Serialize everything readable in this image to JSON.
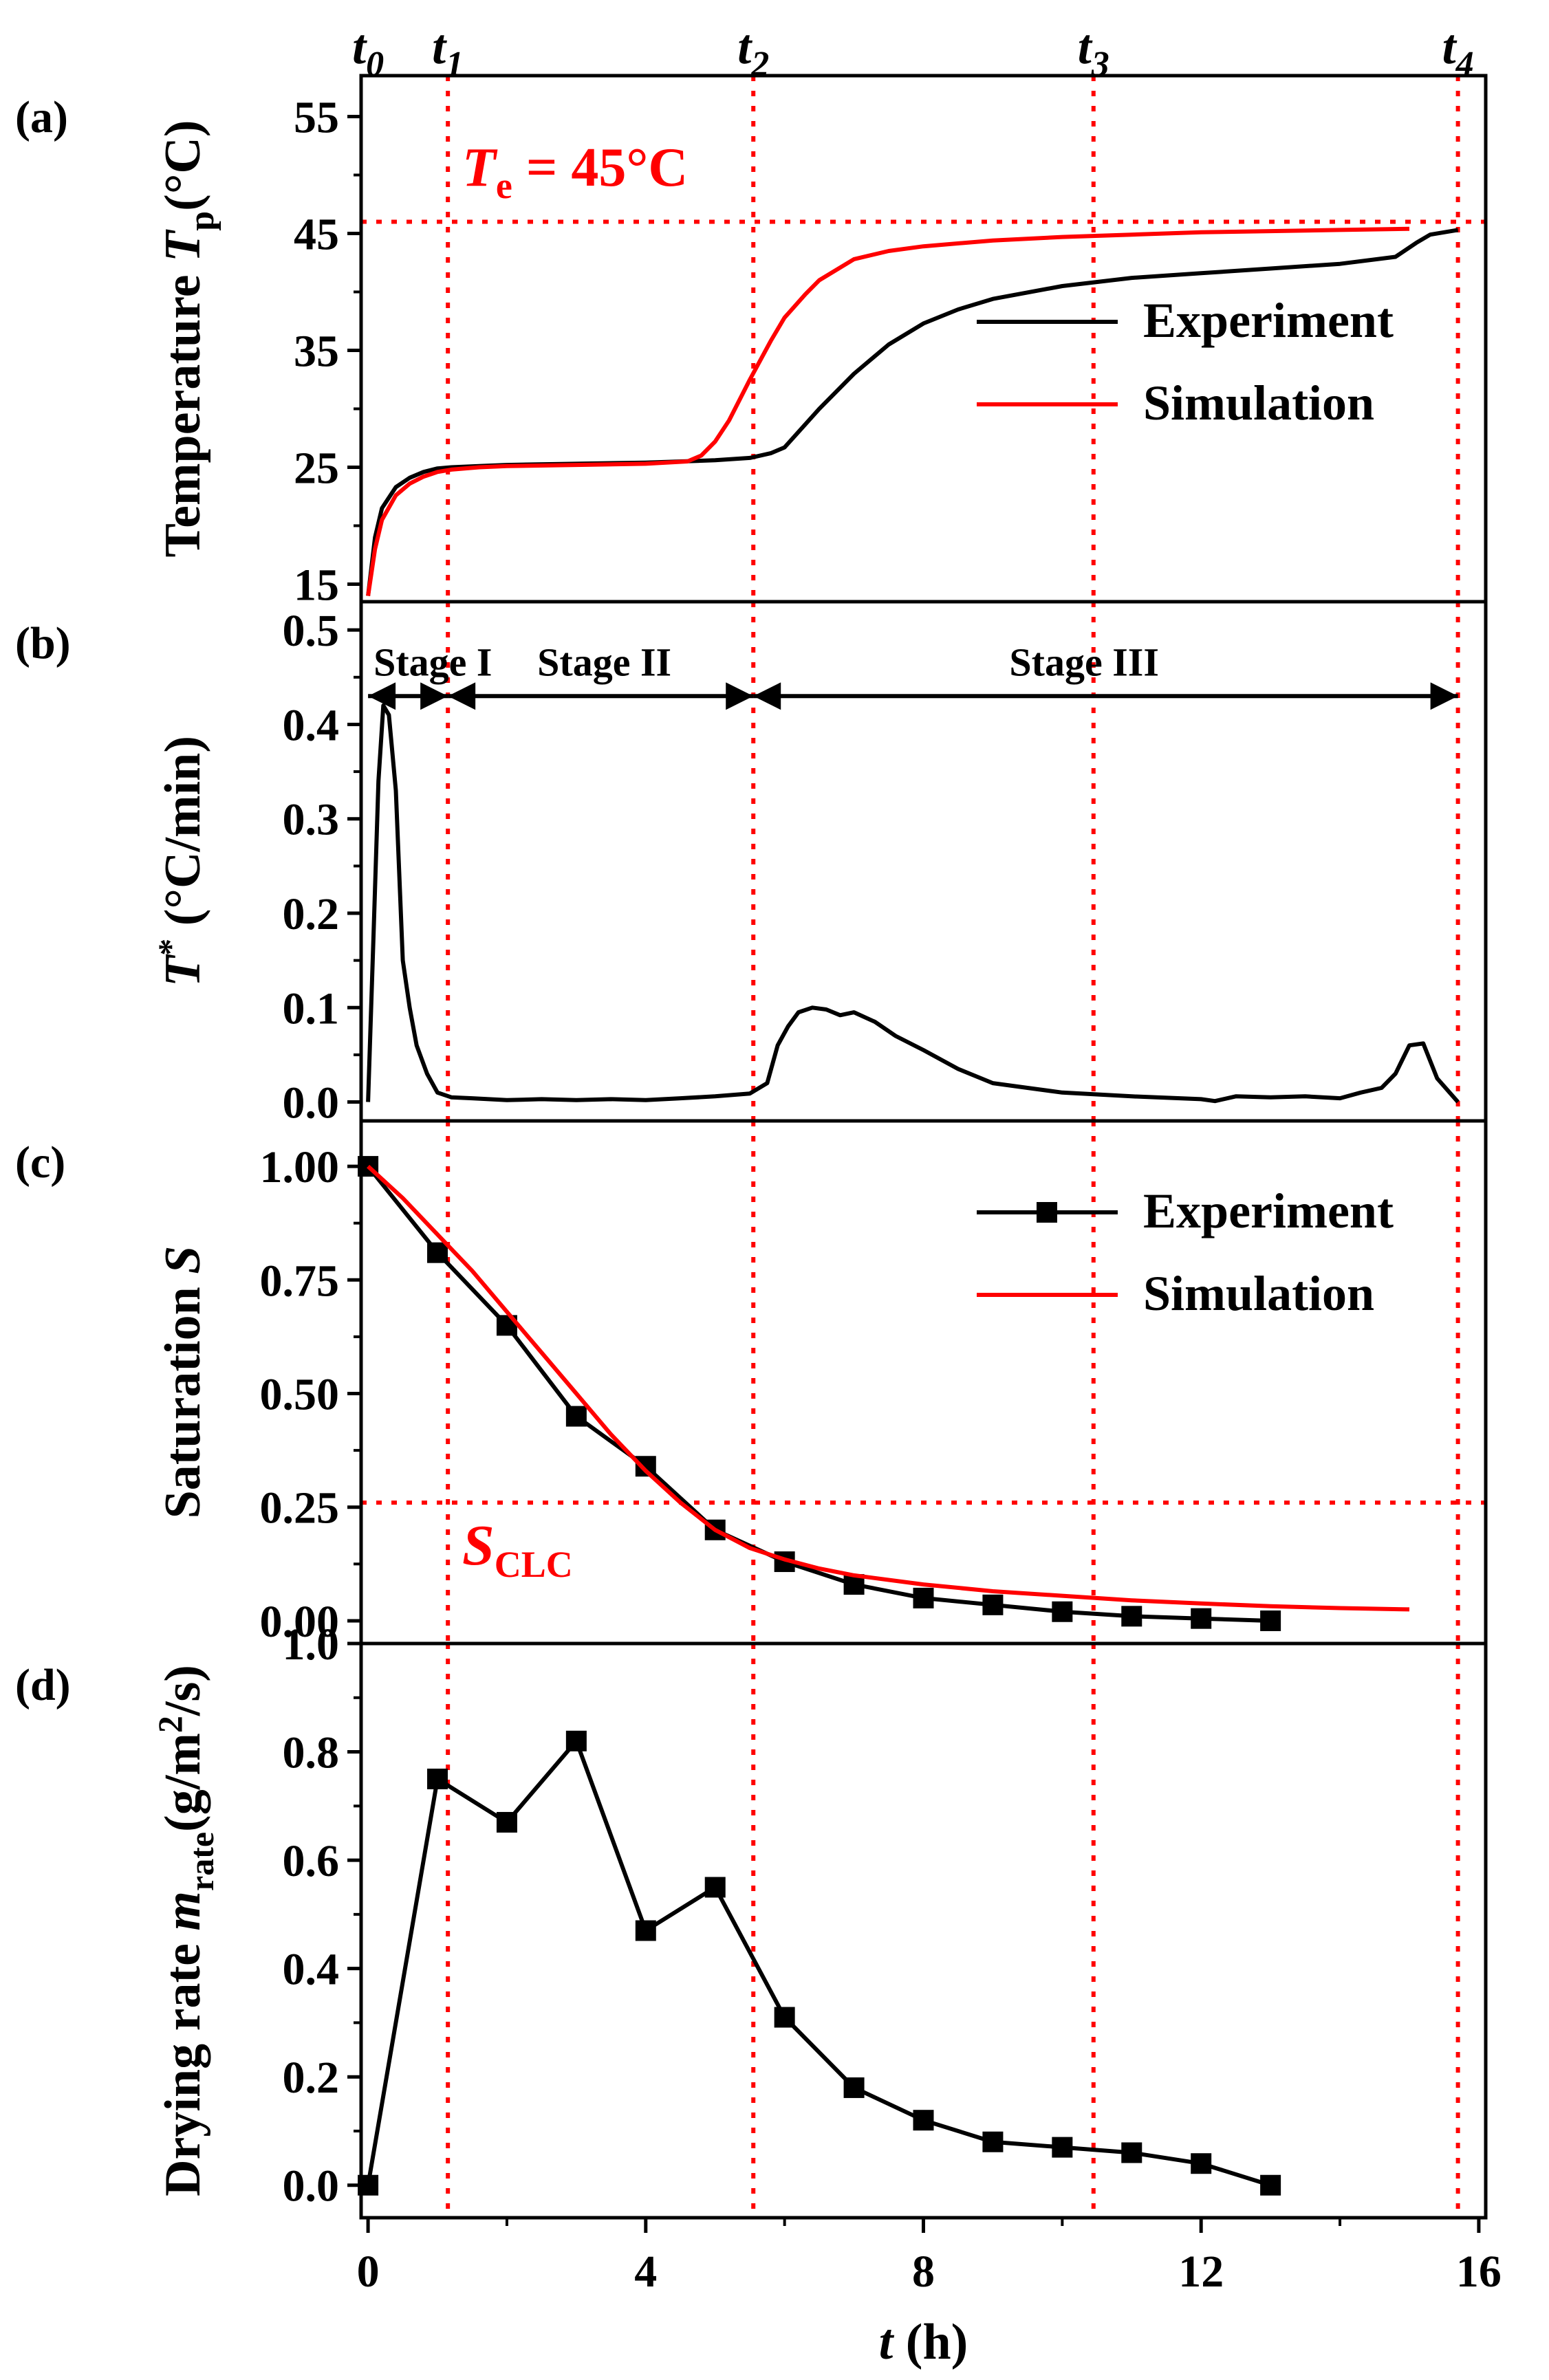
{
  "figure": {
    "time_markers": [
      "t0",
      "t1",
      "t2",
      "t3",
      "t4"
    ],
    "time_marker_values": [
      0,
      1.15,
      5.55,
      10.45,
      15.7
    ]
  },
  "chart_data": [
    {
      "id": "a",
      "type": "line",
      "panel_label": "(a)",
      "ylabel": "Temperature Tp(°C)",
      "ylim": [
        13.5,
        58.5
      ],
      "yticks": [
        15,
        25,
        35,
        45,
        55
      ],
      "xlim": [
        -0.1,
        16.1
      ],
      "series": [
        {
          "name": "Experiment",
          "color": "#000000",
          "x": [
            0,
            0.1,
            0.2,
            0.4,
            0.6,
            0.8,
            1.0,
            1.2,
            1.6,
            2,
            3,
            4,
            5,
            5.5,
            5.8,
            6.0,
            6.5,
            7,
            7.5,
            8,
            8.5,
            9,
            10,
            11,
            12,
            13,
            14,
            14.8,
            15.1,
            15.3,
            15.7
          ],
          "y": [
            14,
            19,
            21.5,
            23.3,
            24.1,
            24.6,
            24.9,
            25.0,
            25.1,
            25.2,
            25.3,
            25.4,
            25.6,
            25.8,
            26.2,
            26.7,
            30,
            33,
            35.5,
            37.3,
            38.5,
            39.4,
            40.5,
            41.2,
            41.6,
            42.0,
            42.4,
            43.0,
            44.2,
            44.9,
            45.3
          ]
        },
        {
          "name": "Simulation",
          "color": "#ff0000",
          "x": [
            0,
            0.1,
            0.2,
            0.4,
            0.6,
            0.8,
            1.0,
            1.2,
            1.6,
            2,
            3,
            4,
            4.6,
            4.8,
            5.0,
            5.2,
            5.5,
            5.8,
            6.0,
            6.3,
            6.5,
            7,
            7.5,
            8,
            9,
            10,
            11,
            12,
            13,
            14,
            15
          ],
          "y": [
            14,
            18,
            20.5,
            22.6,
            23.6,
            24.2,
            24.6,
            24.8,
            25.0,
            25.1,
            25.2,
            25.3,
            25.5,
            26,
            27.2,
            29,
            32.5,
            35.8,
            37.8,
            39.8,
            41,
            42.8,
            43.5,
            43.9,
            44.4,
            44.7,
            44.9,
            45.1,
            45.2,
            45.3,
            45.4
          ]
        }
      ],
      "reference_lines": {
        "hline": 46,
        "vlines": [
          1.15,
          5.55,
          10.45,
          15.7
        ]
      },
      "annotation": {
        "symbol": "T",
        "subscript": "e",
        "text": " = 45°C"
      },
      "legend": [
        "Experiment",
        "Simulation"
      ]
    },
    {
      "id": "b",
      "type": "line",
      "panel_label": "(b)",
      "ylabel": "T* (°C/min)",
      "ylim": [
        -0.02,
        0.53
      ],
      "yticks": [
        "0.0",
        "0.1",
        "0.2",
        "0.3",
        "0.4",
        "0.5"
      ],
      "ytick_values": [
        0,
        0.1,
        0.2,
        0.3,
        0.4,
        0.5
      ],
      "xlim": [
        -0.1,
        16.1
      ],
      "series": [
        {
          "name": "T*",
          "color": "#000000",
          "x": [
            0,
            0.08,
            0.15,
            0.22,
            0.3,
            0.4,
            0.5,
            0.6,
            0.7,
            0.85,
            1.0,
            1.2,
            1.5,
            2,
            2.5,
            3,
            3.5,
            4,
            4.5,
            5,
            5.5,
            5.75,
            5.9,
            6.05,
            6.2,
            6.4,
            6.6,
            6.8,
            7,
            7.3,
            7.6,
            8,
            8.5,
            9,
            9.5,
            10,
            11,
            12,
            12.2,
            12.5,
            13,
            13.5,
            14,
            14.3,
            14.6,
            14.8,
            15.0,
            15.2,
            15.4,
            15.7
          ],
          "y": [
            0.0,
            0.18,
            0.34,
            0.42,
            0.41,
            0.33,
            0.15,
            0.1,
            0.06,
            0.03,
            0.01,
            0.005,
            0.004,
            0.002,
            0.003,
            0.002,
            0.003,
            0.002,
            0.004,
            0.006,
            0.009,
            0.02,
            0.06,
            0.08,
            0.095,
            0.1,
            0.098,
            0.092,
            0.095,
            0.085,
            0.07,
            0.055,
            0.035,
            0.02,
            0.015,
            0.01,
            0.006,
            0.003,
            0.001,
            0.006,
            0.005,
            0.006,
            0.004,
            0.01,
            0.015,
            0.03,
            0.06,
            0.062,
            0.025,
            0.0
          ]
        }
      ],
      "reference_lines": {
        "vlines": [
          1.15,
          5.55,
          10.45,
          15.7
        ]
      },
      "stages": [
        {
          "label": "Stage I",
          "from": 0,
          "to": 1.15
        },
        {
          "label": "Stage II",
          "from": 1.15,
          "to": 5.55
        },
        {
          "label": "Stage III",
          "from": 5.55,
          "to": 15.7
        }
      ],
      "stage_arrow_y": 0.43
    },
    {
      "id": "c",
      "type": "line",
      "panel_label": "(c)",
      "ylabel": "Saturation S",
      "ylim": [
        -0.05,
        1.1
      ],
      "yticks": [
        "0.00",
        "0.25",
        "0.50",
        "0.75",
        "1.00"
      ],
      "ytick_values": [
        0,
        0.25,
        0.5,
        0.75,
        1.0
      ],
      "xlim": [
        -0.1,
        16.1
      ],
      "series": [
        {
          "name": "Experiment",
          "color": "#000000",
          "markers": true,
          "x": [
            0,
            1,
            2,
            3,
            4,
            5,
            6,
            7,
            8,
            9,
            10,
            11,
            12,
            13
          ],
          "y": [
            1.0,
            0.81,
            0.65,
            0.45,
            0.34,
            0.2,
            0.13,
            0.08,
            0.05,
            0.035,
            0.02,
            0.01,
            0.005,
            0.0
          ]
        },
        {
          "name": "Simulation",
          "color": "#ff0000",
          "x": [
            0,
            0.5,
            1,
            1.5,
            2,
            2.5,
            3,
            3.5,
            4,
            4.5,
            5,
            5.5,
            6,
            6.5,
            7,
            8,
            9,
            10,
            11,
            12,
            13,
            14,
            15
          ],
          "y": [
            1.0,
            0.93,
            0.85,
            0.77,
            0.68,
            0.59,
            0.5,
            0.41,
            0.33,
            0.26,
            0.2,
            0.16,
            0.135,
            0.115,
            0.1,
            0.08,
            0.065,
            0.055,
            0.045,
            0.038,
            0.032,
            0.028,
            0.025
          ]
        }
      ],
      "reference_lines": {
        "hline": 0.26,
        "vlines": [
          1.15,
          5.55,
          10.45,
          15.7
        ]
      },
      "annotation": {
        "symbol": "S",
        "subscript": "CLC"
      },
      "legend": [
        "Experiment",
        "Simulation"
      ]
    },
    {
      "id": "d",
      "type": "line",
      "panel_label": "(d)",
      "ylabel": "Drying rate mrate(g/m2/s)",
      "ylim": [
        -0.06,
        1.0
      ],
      "yticks": [
        "0.0",
        "0.2",
        "0.4",
        "0.6",
        "0.8",
        "1.0"
      ],
      "ytick_values": [
        0,
        0.2,
        0.4,
        0.6,
        0.8,
        1.0
      ],
      "xlim": [
        -0.1,
        16.1
      ],
      "xticks": [
        0,
        4,
        8,
        12,
        16
      ],
      "xlabel": "t (h)",
      "series": [
        {
          "name": "Drying rate",
          "color": "#000000",
          "markers": true,
          "x": [
            0,
            1,
            2,
            3,
            4,
            5,
            6,
            7,
            8,
            9,
            10,
            11,
            12,
            13
          ],
          "y": [
            0.0,
            0.75,
            0.67,
            0.82,
            0.47,
            0.55,
            0.31,
            0.18,
            0.12,
            0.08,
            0.07,
            0.06,
            0.04,
            0.0
          ]
        }
      ],
      "reference_lines": {
        "vlines": [
          1.15,
          5.55,
          10.45,
          15.7
        ]
      }
    }
  ]
}
